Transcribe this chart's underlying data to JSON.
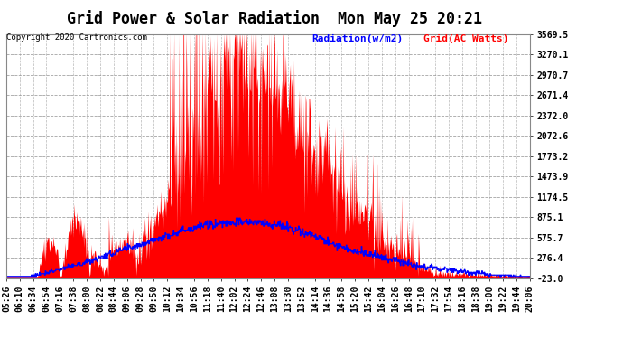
{
  "title": "Grid Power & Solar Radiation  Mon May 25 20:21",
  "copyright": "Copyright 2020 Cartronics.com",
  "legend_radiation": "Radiation(w/m2)",
  "legend_grid": "Grid(AC Watts)",
  "yticks": [
    -23.0,
    276.4,
    575.7,
    875.1,
    1174.5,
    1473.9,
    1773.2,
    2072.6,
    2372.0,
    2671.4,
    2970.7,
    3270.1,
    3569.5
  ],
  "ymin": -23.0,
  "ymax": 3569.5,
  "color_grid_fill": "#ff0000",
  "color_radiation": "#0000ff",
  "background_color": "#ffffff",
  "grid_color": "#999999",
  "title_color": "#000000",
  "copyright_color": "#000000",
  "xtick_labels": [
    "05:26",
    "06:10",
    "06:34",
    "06:54",
    "07:16",
    "07:38",
    "08:00",
    "08:22",
    "08:44",
    "09:06",
    "09:28",
    "09:50",
    "10:12",
    "10:34",
    "10:56",
    "11:18",
    "11:40",
    "12:02",
    "12:24",
    "12:46",
    "13:08",
    "13:30",
    "13:52",
    "14:14",
    "14:36",
    "14:58",
    "15:20",
    "15:42",
    "16:04",
    "16:26",
    "16:48",
    "17:10",
    "17:32",
    "17:54",
    "18:16",
    "18:38",
    "19:00",
    "19:22",
    "19:44",
    "20:06"
  ],
  "title_fontsize": 12,
  "tick_fontsize": 7,
  "legend_fontsize": 8
}
